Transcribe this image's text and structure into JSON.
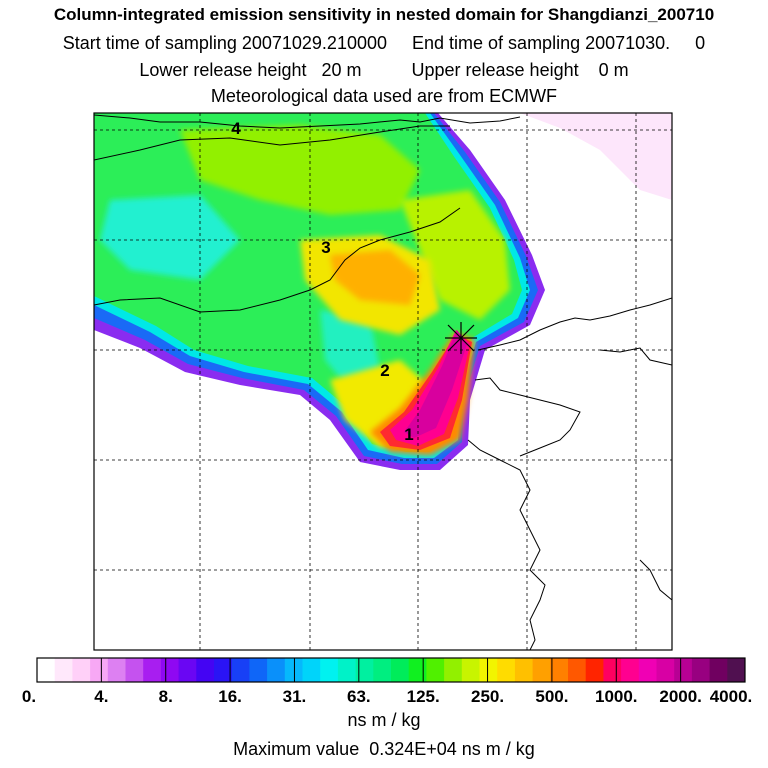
{
  "header": {
    "title": "Column-integrated emission sensitivity in nested domain for Shangdianzi_200710",
    "sampling": "Start time of sampling 20071029.210000     End time of sampling 20071030.     0",
    "heights": "Lower release height   20 m          Upper release height    0 m",
    "meteo": "Meteorological data used are from ECMWF"
  },
  "chart_data": {
    "type": "heatmap",
    "title": "Column-integrated emission sensitivity in nested domain for Shangdianzi_200710",
    "colorbar": {
      "ticks": [
        "0.",
        "4.",
        "8.",
        "16.",
        "31.",
        "63.",
        "125.",
        "250.",
        "500.",
        "1000.",
        "2000.",
        "4000."
      ],
      "colors": [
        "#ffffff",
        "#ffe8fb",
        "#ffd0f8",
        "#f7a8f5",
        "#dd80f2",
        "#c552ef",
        "#a81ef0",
        "#8f08f2",
        "#6a06f3",
        "#4404f3",
        "#2a14f5",
        "#1840f6",
        "#0f66f8",
        "#0a90fa",
        "#06b8fc",
        "#00d4fa",
        "#00f2f0",
        "#00f2c8",
        "#00f0a0",
        "#00ee80",
        "#00ec5a",
        "#10f020",
        "#50f000",
        "#92f000",
        "#c8f400",
        "#f2f400",
        "#ffdc00",
        "#ffc000",
        "#ffa000",
        "#ff8000",
        "#ff5800",
        "#ff2400",
        "#ff0060",
        "#ff0090",
        "#f000b4",
        "#d800a4",
        "#b80094",
        "#980080",
        "#700060",
        "#501050"
      ]
    },
    "units": "ns m / kg",
    "max_value": "Maximum value  0.324E+04 ns m / kg",
    "annotations": [
      "1",
      "2",
      "3",
      "4"
    ],
    "receptor_marker": "receptor-cross"
  }
}
